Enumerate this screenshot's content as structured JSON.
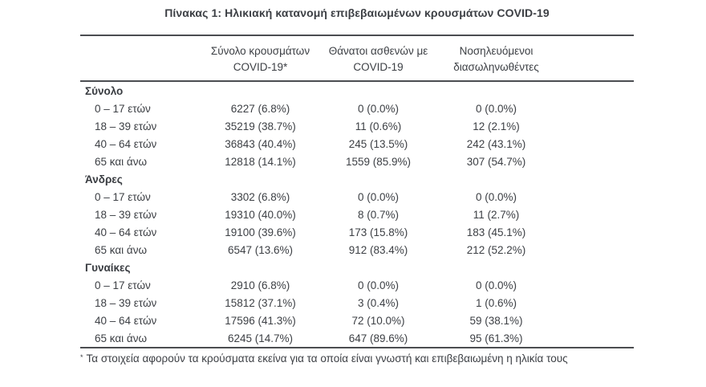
{
  "title": "Πίνακας 1: Ηλικιακή κατανομή επιβεβαιωμένων κρουσμάτων COVID-19",
  "colors": {
    "background": "#ffffff",
    "text": "#3d4045",
    "rule": "#4b4d51"
  },
  "table": {
    "headers": {
      "cases": {
        "line1": "Σύνολο κρουσμάτων",
        "line2": "COVID-19*"
      },
      "deaths": {
        "line1": "Θάνατοι ασθενών με",
        "line2": "COVID-19"
      },
      "intubated": {
        "line1": "Νοσηλευόμενοι",
        "line2": "διασωληνωθέντες"
      }
    },
    "sections": [
      {
        "label": "Σύνολο",
        "rows": [
          {
            "label": "0 – 17 ετών",
            "cases": "6227 (6.8%)",
            "deaths": "0 (0.0%)",
            "intubated": "0 (0.0%)"
          },
          {
            "label": "18 – 39 ετών",
            "cases": "35219 (38.7%)",
            "deaths": "11 (0.6%)",
            "intubated": "12 (2.1%)"
          },
          {
            "label": "40 – 64 ετών",
            "cases": "36843 (40.4%)",
            "deaths": "245 (13.5%)",
            "intubated": "242 (43.1%)"
          },
          {
            "label": "65 και άνω",
            "cases": "12818 (14.1%)",
            "deaths": "1559 (85.9%)",
            "intubated": "307 (54.7%)"
          }
        ]
      },
      {
        "label": "Άνδρες",
        "rows": [
          {
            "label": "0 – 17 ετών",
            "cases": "3302 (6.8%)",
            "deaths": "0 (0.0%)",
            "intubated": "0 (0.0%)"
          },
          {
            "label": "18 – 39 ετών",
            "cases": "19310 (40.0%)",
            "deaths": "8 (0.7%)",
            "intubated": "11 (2.7%)"
          },
          {
            "label": "40 – 64 ετών",
            "cases": "19100 (39.6%)",
            "deaths": "173 (15.8%)",
            "intubated": "183 (45.1%)"
          },
          {
            "label": "65 και άνω",
            "cases": "6547 (13.6%)",
            "deaths": "912 (83.4%)",
            "intubated": "212 (52.2%)"
          }
        ]
      },
      {
        "label": "Γυναίκες",
        "rows": [
          {
            "label": "0 – 17 ετών",
            "cases": "2910 (6.8%)",
            "deaths": "0 (0.0%)",
            "intubated": "0 (0.0%)"
          },
          {
            "label": "18 – 39 ετών",
            "cases": "15812 (37.1%)",
            "deaths": "3 (0.4%)",
            "intubated": "1 (0.6%)"
          },
          {
            "label": "40 – 64 ετών",
            "cases": "17596 (41.3%)",
            "deaths": "72 (10.0%)",
            "intubated": "59 (38.1%)"
          },
          {
            "label": "65 και άνω",
            "cases": "6245 (14.7%)",
            "deaths": "647 (89.6%)",
            "intubated": "95 (61.3%)"
          }
        ]
      }
    ],
    "footnote_marker": "*",
    "footnote": "Τα στοιχεία αφορούν τα κρούσματα εκείνα για τα οποία είναι γνωστή και επιβεβαιωμένη η ηλικία τους"
  }
}
